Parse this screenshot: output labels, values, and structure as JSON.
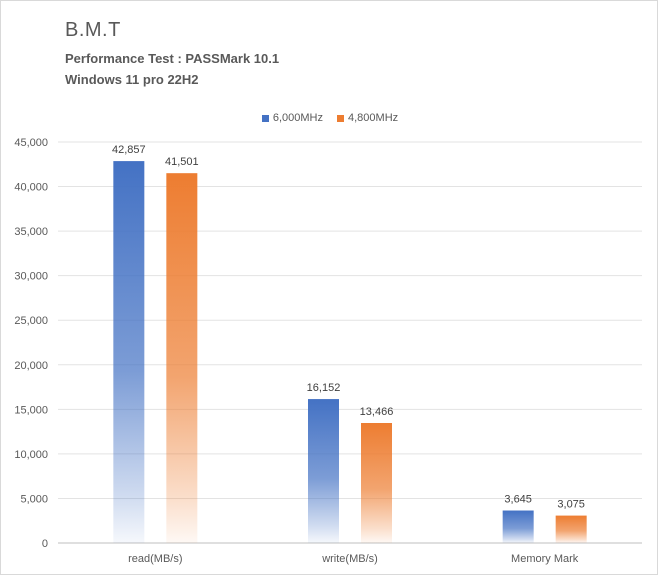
{
  "chart_data": {
    "type": "bar",
    "title": "B.M.T",
    "subtitle_lines": [
      "Performance Test : PASSMark 10.1",
      "Windows 11 pro 22H2"
    ],
    "categories": [
      "read(MB/s)",
      "write(MB/s)",
      "Memory Mark"
    ],
    "series": [
      {
        "name": "6,000MHz",
        "values": [
          42857,
          16152,
          3645
        ],
        "labels": [
          "42,857",
          "16,152",
          "3,645"
        ],
        "color": "#4472c4"
      },
      {
        "name": "4,800MHz",
        "values": [
          41501,
          13466,
          3075
        ],
        "labels": [
          "41,501",
          "13,466",
          "3,075"
        ],
        "color": "#ed7d31"
      }
    ],
    "ylim": [
      0,
      45000
    ],
    "yticks": [
      0,
      5000,
      10000,
      15000,
      20000,
      25000,
      30000,
      35000,
      40000,
      45000
    ],
    "ytick_labels": [
      "0",
      "5,000",
      "10,000",
      "15,000",
      "20,000",
      "25,000",
      "30,000",
      "35,000",
      "40,000",
      "45,000"
    ],
    "grid": true,
    "legend_position": "top"
  }
}
